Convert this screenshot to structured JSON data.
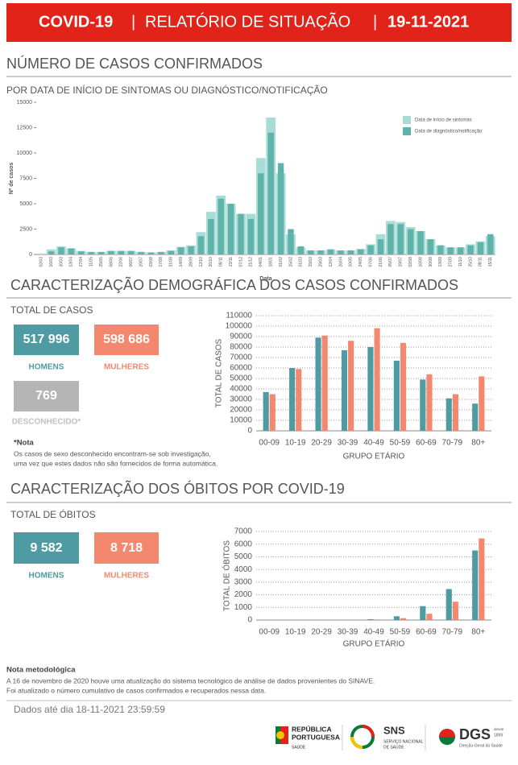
{
  "header": {
    "title": "COVID-19",
    "separator": "|",
    "subtitle": "RELATÓRIO DE SITUAÇÃO",
    "date": "19-11-2021"
  },
  "cases_section": {
    "title": "NÚMERO DE CASOS CONFIRMADOS",
    "subtitle": "POR DATA DE INÍCIO DE SINTOMAS OU DIAGNÓSTICO/NOTIFICAÇÃO"
  },
  "demographics": {
    "title": "CARACTERIZAÇÃO DEMOGRÁFICA DOS CASOS CONFIRMADOS",
    "total_label": "TOTAL DE CASOS",
    "cards": [
      {
        "value": "517 996",
        "label": "HOMENS"
      },
      {
        "value": "598 686",
        "label": "MULHERES"
      },
      {
        "value": "769",
        "label": "DESCONHECIDO*"
      }
    ],
    "note_title": "*Nota",
    "note_lines": [
      "Os casos de sexo desconhecido encontram-se sob investigação,",
      "uma vez que estes dados não são fornecidos de forma automática."
    ]
  },
  "deaths": {
    "title": "CARACTERIZAÇÃO DOS ÓBITOS POR COVID-19",
    "total_label": "TOTAL DE ÓBITOS",
    "cards": [
      {
        "value": "9 582",
        "label": "HOMENS"
      },
      {
        "value": "8 718",
        "label": "MULHERES"
      }
    ]
  },
  "methodology": {
    "title": "Nota metodológica",
    "lines": [
      "A 16 de novembro de 2020 houve uma atualização do sistema tecnológico de análise de dados provenientes do SINAVE.",
      "Foi atualizado o número cumulativo de casos confirmados e recuperados nessa data."
    ]
  },
  "footer": {
    "data_until": "Dados até dia 18-11-2021 23:59:59"
  },
  "logos": {
    "republica": [
      "REPÚBLICA",
      "PORTUGUESA"
    ],
    "republica_sub": "SAÚDE",
    "sns": "SNS",
    "sns_sub": [
      "SERVIÇO NACIONAL",
      "DE SAÚDE"
    ],
    "dgs": "DGS",
    "dgs_since": [
      "desde",
      "1899"
    ],
    "dgs_sub": "Direção-Geral da Saúde"
  },
  "chart_data": [
    {
      "type": "bar",
      "bar_mode": "overlap",
      "xlabel": "Data",
      "ylabel": "Nº de casos",
      "categories": [
        "02/03",
        "16/03",
        "30/03",
        "13/04",
        "27/04",
        "11/05",
        "25/05",
        "08/06",
        "22/06",
        "06/07",
        "20/07",
        "03/08",
        "17/08",
        "31/08",
        "14/09",
        "28/09",
        "12/10",
        "26/10",
        "09/11",
        "23/11",
        "07/12",
        "21/12",
        "04/01",
        "18/01",
        "01/02",
        "15/02",
        "01/03",
        "15/03",
        "29/03",
        "12/04",
        "26/04",
        "10/05",
        "24/05",
        "07/06",
        "21/06",
        "05/07",
        "19/07",
        "02/08",
        "16/08",
        "30/08",
        "13/09",
        "27/09",
        "11/10",
        "25/10",
        "08/11",
        "15/11"
      ],
      "series": [
        {
          "name": "Data de início de sintomas",
          "color": "#a8dcd5",
          "values": [
            100,
            500,
            800,
            600,
            350,
            250,
            250,
            350,
            350,
            350,
            250,
            200,
            250,
            400,
            750,
            900,
            2200,
            4200,
            5800,
            5000,
            4000,
            4000,
            9500,
            13500,
            8000,
            2000,
            700,
            400,
            400,
            500,
            400,
            400,
            550,
            1000,
            2000,
            3300,
            3200,
            2700,
            2300,
            1500,
            900,
            700,
            700,
            1000,
            1300,
            1800
          ]
        },
        {
          "name": "Data de diagnóstico/notificação",
          "color": "#5fb3ab",
          "values": [
            0,
            300,
            700,
            600,
            300,
            250,
            250,
            350,
            350,
            350,
            250,
            200,
            250,
            350,
            700,
            800,
            1800,
            3500,
            5500,
            5000,
            4000,
            3500,
            8000,
            12000,
            9000,
            2500,
            800,
            400,
            400,
            500,
            400,
            400,
            500,
            900,
            1500,
            3000,
            3000,
            2500,
            2300,
            1500,
            900,
            700,
            700,
            900,
            1200,
            2000
          ]
        }
      ],
      "ylim": [
        0,
        15000
      ],
      "yticks": [
        0,
        2500,
        5000,
        7500,
        10000,
        12500,
        15000
      ],
      "grid": false,
      "legend": "top-right"
    },
    {
      "type": "bar",
      "bar_mode": "grouped",
      "xlabel": "GRUPO ETÁRIO",
      "ylabel": "TOTAL DE CASOS",
      "categories": [
        "00-09",
        "10-19",
        "20-29",
        "30-39",
        "40-49",
        "50-59",
        "60-69",
        "70-79",
        "80+"
      ],
      "series": [
        {
          "color": "#4e9ba4",
          "values": [
            37000,
            60000,
            89000,
            77000,
            80000,
            67000,
            49000,
            31000,
            26000
          ]
        },
        {
          "color": "#f4886f",
          "values": [
            35000,
            59000,
            91000,
            86000,
            98000,
            84000,
            54000,
            35000,
            52000
          ]
        }
      ],
      "ylim": [
        0,
        110000
      ],
      "yticks": [
        0,
        10000,
        20000,
        30000,
        40000,
        50000,
        60000,
        70000,
        80000,
        90000,
        100000,
        110000
      ],
      "grid": true
    },
    {
      "type": "bar",
      "bar_mode": "grouped",
      "xlabel": "GRUPO ETÁRIO",
      "ylabel": "TOTAL DE ÓBITOS",
      "categories": [
        "00-09",
        "10-19",
        "20-29",
        "30-39",
        "40-49",
        "50-59",
        "60-69",
        "70-79",
        "80+"
      ],
      "series": [
        {
          "color": "#4e9ba4",
          "values": [
            3,
            2,
            8,
            20,
            70,
            300,
            1100,
            2450,
            5500
          ]
        },
        {
          "color": "#f4886f",
          "values": [
            2,
            2,
            5,
            15,
            45,
            150,
            500,
            1450,
            6450
          ]
        }
      ],
      "ylim": [
        0,
        7000
      ],
      "yticks": [
        0,
        1000,
        2000,
        3000,
        4000,
        5000,
        6000,
        7000
      ],
      "grid": true
    }
  ]
}
